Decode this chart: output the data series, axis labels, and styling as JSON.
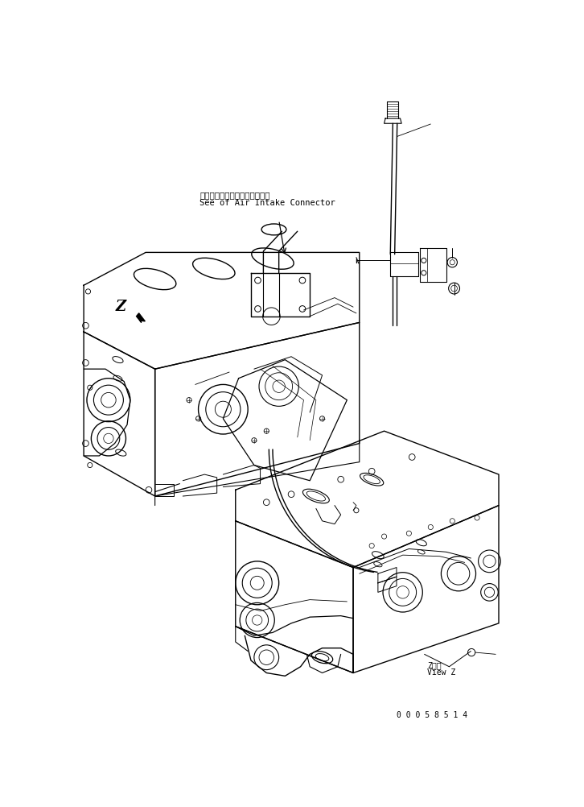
{
  "bg_color": "#ffffff",
  "line_color": "#000000",
  "annotation_jp": "エアーインテークコネクタ参照",
  "annotation_en": "See of Air Intake Connector",
  "view_label_jp": "Z　視",
  "view_label_en": "View Z",
  "part_number": "0 0 0 5 8 5 1 4",
  "z_label": "Z"
}
